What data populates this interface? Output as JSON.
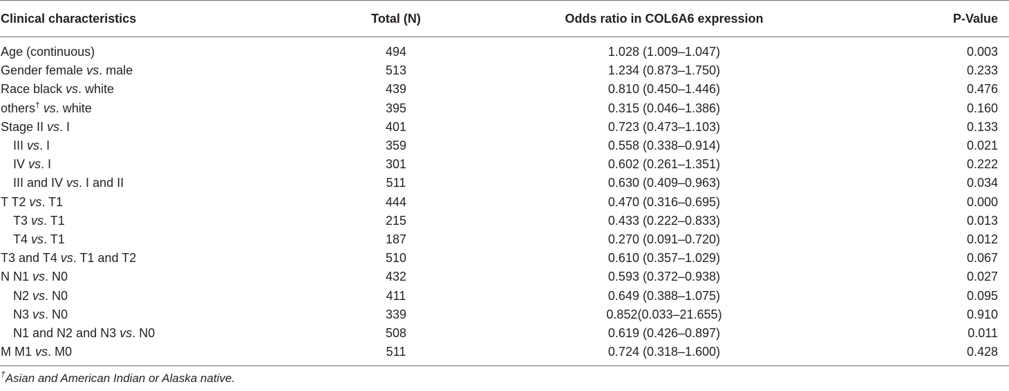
{
  "headers": {
    "col1": "Clinical characteristics",
    "col2": "Total (N)",
    "col3": "Odds ratio in COL6A6 expression",
    "col4": "P-Value"
  },
  "rows": [
    {
      "pre": "Age (continuous)",
      "vs": "",
      "post": "",
      "sup": "",
      "indent": false,
      "total": "494",
      "or": "1.028 (1.009–1.047)",
      "p": "0.003"
    },
    {
      "pre": "Gender female ",
      "vs": "vs",
      "post": ". male",
      "sup": "",
      "indent": false,
      "total": "513",
      "or": "1.234 (0.873–1.750)",
      "p": "0.233"
    },
    {
      "pre": "Race black ",
      "vs": "vs",
      "post": ". white",
      "sup": "",
      "indent": false,
      "total": "439",
      "or": "0.810 (0.450–1.446)",
      "p": "0.476"
    },
    {
      "pre": "others",
      "vs": "vs",
      "post": ". white",
      "sup": "†",
      "indent": false,
      "total": "395",
      "or": "0.315 (0.046–1.386)",
      "p": "0.160"
    },
    {
      "pre": "Stage II ",
      "vs": "vs",
      "post": ". I",
      "sup": "",
      "indent": false,
      "total": "401",
      "or": "0.723 (0.473–1.103)",
      "p": "0.133"
    },
    {
      "pre": "III ",
      "vs": "vs",
      "post": ". I",
      "sup": "",
      "indent": true,
      "total": "359",
      "or": "0.558 (0.338–0.914)",
      "p": "0.021"
    },
    {
      "pre": "IV ",
      "vs": "vs",
      "post": ". I",
      "sup": "",
      "indent": true,
      "total": "301",
      "or": "0.602 (0.261–1.351)",
      "p": "0.222"
    },
    {
      "pre": "III and IV ",
      "vs": "vs",
      "post": ". I and II",
      "sup": "",
      "indent": true,
      "total": "511",
      "or": "0.630 (0.409–0.963)",
      "p": "0.034"
    },
    {
      "pre": "T T2 ",
      "vs": "vs",
      "post": ". T1",
      "sup": "",
      "indent": false,
      "total": "444",
      "or": "0.470 (0.316–0.695)",
      "p": "0.000"
    },
    {
      "pre": "T3 ",
      "vs": "vs",
      "post": ". T1",
      "sup": "",
      "indent": true,
      "total": "215",
      "or": "0.433 (0.222–0.833)",
      "p": "0.013"
    },
    {
      "pre": "T4 ",
      "vs": "vs",
      "post": ". T1",
      "sup": "",
      "indent": true,
      "total": "187",
      "or": "0.270 (0.091–0.720)",
      "p": "0.012"
    },
    {
      "pre": "T3 and T4 ",
      "vs": "vs",
      "post": ". T1 and T2",
      "sup": "",
      "indent": false,
      "total": "510",
      "or": "0.610 (0.357–1.029)",
      "p": "0.067"
    },
    {
      "pre": "N N1 ",
      "vs": "vs",
      "post": ". N0",
      "sup": "",
      "indent": false,
      "total": "432",
      "or": "0.593 (0.372–0.938)",
      "p": "0.027"
    },
    {
      "pre": "N2 ",
      "vs": "vs",
      "post": ". N0",
      "sup": "",
      "indent": true,
      "total": "411",
      "or": "0.649 (0.388–1.075)",
      "p": "0.095"
    },
    {
      "pre": "N3 ",
      "vs": "vs",
      "post": ". N0",
      "sup": "",
      "indent": true,
      "total": "339",
      "or": "0.852(0.033–21.655)",
      "p": "0.910"
    },
    {
      "pre": "N1 and N2 and N3 ",
      "vs": "vs",
      "post": ". N0",
      "sup": "",
      "indent": true,
      "total": "508",
      "or": "0.619 (0.426–0.897)",
      "p": "0.011"
    },
    {
      "pre": "M M1 ",
      "vs": "vs",
      "post": ". M0",
      "sup": "",
      "indent": false,
      "total": "511",
      "or": "0.724 (0.318–1.600)",
      "p": "0.428"
    }
  ],
  "footnote": {
    "mark": "†",
    "text": "Asian and American Indian or Alaska native."
  }
}
